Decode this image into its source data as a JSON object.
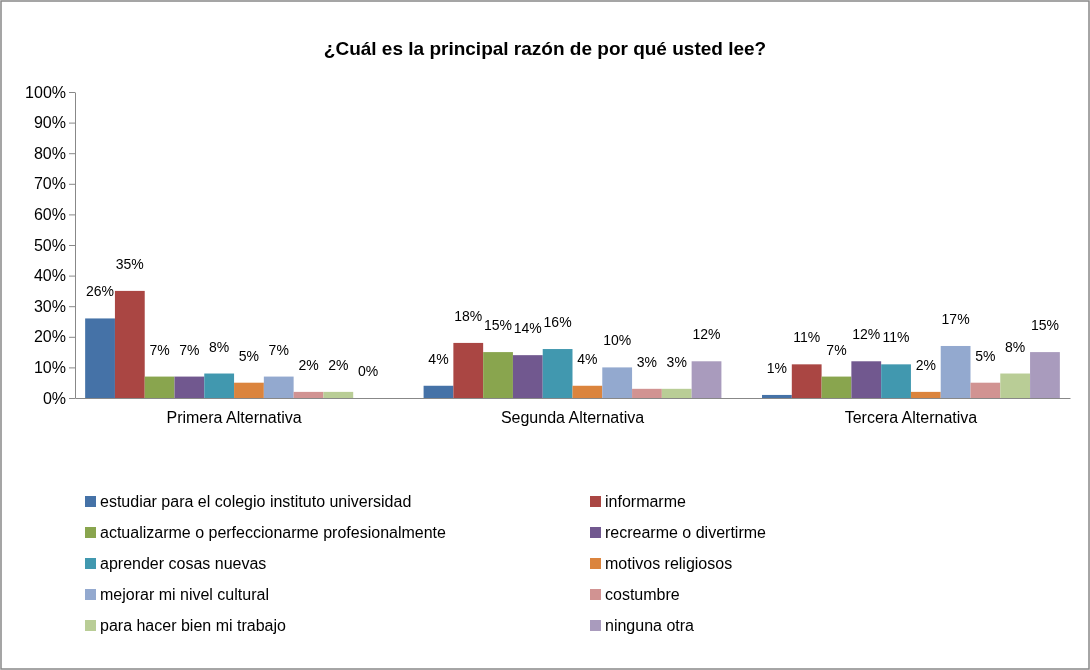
{
  "chart_data": {
    "type": "bar",
    "title": "¿Cuál es la principal razón de por qué usted lee?",
    "categories": [
      "Primera Alternativa",
      "Segunda Alternativa",
      "Tercera Alternativa"
    ],
    "series": [
      {
        "name": "estudiar para el colegio instituto universidad",
        "color": "#4572a7",
        "values": [
          26,
          4,
          1
        ]
      },
      {
        "name": "informarme",
        "color": "#aa4643",
        "values": [
          35,
          18,
          11
        ]
      },
      {
        "name": "actualizarme o perfeccionarme profesionalmente",
        "color": "#89a54e",
        "values": [
          7,
          15,
          7
        ]
      },
      {
        "name": "recrearme o divertirme",
        "color": "#71588f",
        "values": [
          7,
          14,
          12
        ]
      },
      {
        "name": "aprender cosas nuevas",
        "color": "#4198af",
        "values": [
          8,
          16,
          11
        ]
      },
      {
        "name": "motivos religiosos",
        "color": "#db843d",
        "values": [
          5,
          4,
          2
        ]
      },
      {
        "name": "mejorar mi  nivel cultural",
        "color": "#93a9cf",
        "values": [
          7,
          10,
          17
        ]
      },
      {
        "name": "costumbre",
        "color": "#d19392",
        "values": [
          2,
          3,
          5
        ]
      },
      {
        "name": "para hacer bien mi trabajo",
        "color": "#b9cd96",
        "values": [
          2,
          3,
          8
        ]
      },
      {
        "name": "ninguna otra",
        "color": "#a99bbd",
        "values": [
          0,
          12,
          15
        ]
      }
    ],
    "ylim": [
      0,
      100
    ],
    "yticks": [
      {
        "value": 0,
        "label": "0%"
      },
      {
        "value": 10,
        "label": "10%"
      },
      {
        "value": 20,
        "label": "20%"
      },
      {
        "value": 30,
        "label": "30%"
      },
      {
        "value": 40,
        "label": "40%"
      },
      {
        "value": 50,
        "label": "50%"
      },
      {
        "value": 60,
        "label": "60%"
      },
      {
        "value": 70,
        "label": "70%"
      },
      {
        "value": 80,
        "label": "80%"
      },
      {
        "value": 90,
        "label": "90%"
      },
      {
        "value": 100,
        "label": "100%"
      }
    ],
    "value_labels": [
      [
        "26%",
        "4%",
        "1%"
      ],
      [
        "35%",
        "18%",
        "11%"
      ],
      [
        "7%",
        "15%",
        "7%"
      ],
      [
        "7%",
        "14%",
        "12%"
      ],
      [
        "8%",
        "16%",
        "11%"
      ],
      [
        "5%",
        "4%",
        "2%"
      ],
      [
        "7%",
        "10%",
        "17%"
      ],
      [
        "2%",
        "3%",
        "5%"
      ],
      [
        "2%",
        "3%",
        "8%"
      ],
      [
        "0%",
        "12%",
        "15%"
      ]
    ],
    "grid": false,
    "legend": "bottom"
  }
}
